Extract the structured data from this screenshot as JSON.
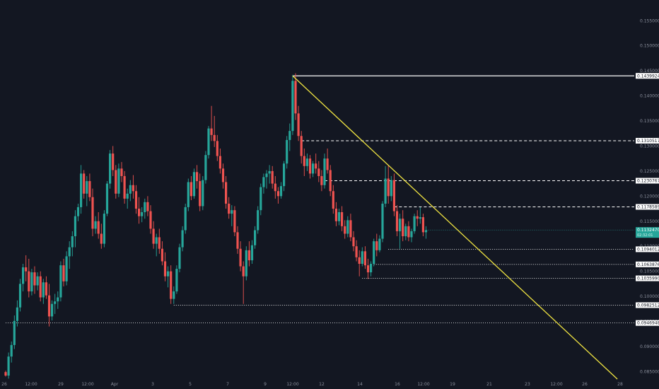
{
  "chart_data": {
    "type": "candlestick",
    "title": "",
    "background": "#131722",
    "colors": {
      "up": "#26a69a",
      "down": "#ef5350",
      "trendline": "#f0e442",
      "level": "#ffffff",
      "price_tag": "#26a69a"
    },
    "grid": false,
    "ylim": [
      0.0835,
      0.158
    ],
    "y_ticks": [
      "0.15500000",
      "0.15000000",
      "0.14500000",
      "0.14000000",
      "0.13500000",
      "0.13000000",
      "0.12500000",
      "0.12000000",
      "0.11500000",
      "0.11000000",
      "0.10500000",
      "0.10000000",
      "0.09500000",
      "0.09000000",
      "0.08500000"
    ],
    "x_ticks": [
      "26",
      "12:00",
      "29",
      "12:00",
      "Apr",
      "3",
      "5",
      "7",
      "9",
      "12:00",
      "12",
      "14",
      "16",
      "12:00",
      "19",
      "21",
      "23",
      "12:00",
      "26",
      "28"
    ],
    "current_price": {
      "value": 0.11324707,
      "label": "0.11324707",
      "timer": "02:32:01"
    },
    "levels": [
      {
        "value": 0.14399241,
        "label": "0.14399241",
        "style": "solid",
        "start_index": 99
      },
      {
        "value": 0.13105175,
        "label": "0.13105175",
        "style": "dashed",
        "start_index": 102
      },
      {
        "value": 0.12307676,
        "label": "0.12307676",
        "style": "dashed",
        "start_index": 110
      },
      {
        "value": 0.11785891,
        "label": "0.11785891",
        "style": "dashed",
        "start_index": 134
      },
      {
        "value": 0.10940125,
        "label": "0.10940125",
        "style": "dotted",
        "start_index": 132
      },
      {
        "value": 0.10638769,
        "label": "0.10638769",
        "style": "dotted",
        "start_index": 127
      },
      {
        "value": 0.103599,
        "label": "0.10359900",
        "style": "dotted",
        "start_index": 123
      },
      {
        "value": 0.09825128,
        "label": "0.09825128",
        "style": "dotted",
        "start_index": 58
      },
      {
        "value": 0.09469485,
        "label": "0.09469485",
        "style": "dotted",
        "start_index": 0
      }
    ],
    "trendline": {
      "start_index": 99,
      "start_value": 0.14399241,
      "end_index": 211,
      "end_value": 0.0835
    },
    "candles": [
      [
        0.0849,
        0.0852,
        0.084,
        0.0842
      ],
      [
        0.0842,
        0.0888,
        0.0836,
        0.088
      ],
      [
        0.088,
        0.091,
        0.0868,
        0.0903
      ],
      [
        0.0903,
        0.0962,
        0.0895,
        0.0951
      ],
      [
        0.0951,
        0.0992,
        0.094,
        0.0978
      ],
      [
        0.0978,
        0.1035,
        0.097,
        0.1025
      ],
      [
        0.1025,
        0.1065,
        0.101,
        0.1058
      ],
      [
        0.1058,
        0.1082,
        0.103,
        0.105
      ],
      [
        0.105,
        0.1075,
        0.0998,
        0.101
      ],
      [
        0.101,
        0.1055,
        0.1002,
        0.1048
      ],
      [
        0.1048,
        0.106,
        0.1005,
        0.1022
      ],
      [
        0.1022,
        0.1048,
        0.1012,
        0.104
      ],
      [
        0.104,
        0.105,
        0.099,
        0.0998
      ],
      [
        0.0998,
        0.1035,
        0.0985,
        0.1028
      ],
      [
        0.1028,
        0.104,
        0.0995,
        0.1002
      ],
      [
        0.1002,
        0.1025,
        0.094,
        0.096
      ],
      [
        0.096,
        0.0992,
        0.0952,
        0.0985
      ],
      [
        0.0985,
        0.1005,
        0.0965,
        0.099
      ],
      [
        0.099,
        0.101,
        0.0975,
        0.0998
      ],
      [
        0.0998,
        0.107,
        0.099,
        0.1062
      ],
      [
        0.1062,
        0.1075,
        0.102,
        0.103
      ],
      [
        0.103,
        0.109,
        0.1022,
        0.108
      ],
      [
        0.108,
        0.111,
        0.1055,
        0.1098
      ],
      [
        0.1098,
        0.113,
        0.108,
        0.112
      ],
      [
        0.112,
        0.1172,
        0.1098,
        0.116
      ],
      [
        0.116,
        0.1185,
        0.115,
        0.1178
      ],
      [
        0.1178,
        0.1262,
        0.1165,
        0.1245
      ],
      [
        0.1245,
        0.1252,
        0.1195,
        0.1205
      ],
      [
        0.1205,
        0.124,
        0.118,
        0.123
      ],
      [
        0.123,
        0.1245,
        0.119,
        0.1198
      ],
      [
        0.1198,
        0.1215,
        0.112,
        0.1135
      ],
      [
        0.1135,
        0.116,
        0.1125,
        0.115
      ],
      [
        0.115,
        0.1168,
        0.1115,
        0.1125
      ],
      [
        0.1125,
        0.1145,
        0.1095,
        0.1105
      ],
      [
        0.1105,
        0.1172,
        0.1098,
        0.1165
      ],
      [
        0.1165,
        0.123,
        0.116,
        0.1225
      ],
      [
        0.1225,
        0.1292,
        0.1215,
        0.1285
      ],
      [
        0.1285,
        0.13,
        0.124,
        0.1252
      ],
      [
        0.1252,
        0.1262,
        0.1195,
        0.1205
      ],
      [
        0.1205,
        0.1265,
        0.1198,
        0.1255
      ],
      [
        0.1255,
        0.1268,
        0.1228,
        0.124
      ],
      [
        0.124,
        0.125,
        0.1185,
        0.1195
      ],
      [
        0.1195,
        0.1215,
        0.1175,
        0.1205
      ],
      [
        0.1205,
        0.1232,
        0.119,
        0.1222
      ],
      [
        0.1222,
        0.1242,
        0.1195,
        0.121
      ],
      [
        0.121,
        0.1222,
        0.1165,
        0.1175
      ],
      [
        0.1175,
        0.1198,
        0.1145,
        0.116
      ],
      [
        0.116,
        0.1178,
        0.1148,
        0.1168
      ],
      [
        0.1168,
        0.1195,
        0.1155,
        0.1188
      ],
      [
        0.1188,
        0.12,
        0.116,
        0.117
      ],
      [
        0.117,
        0.1182,
        0.1125,
        0.1135
      ],
      [
        0.1135,
        0.115,
        0.1095,
        0.1105
      ],
      [
        0.1105,
        0.1125,
        0.108,
        0.1118
      ],
      [
        0.1118,
        0.1135,
        0.1085,
        0.1095
      ],
      [
        0.1095,
        0.111,
        0.1062,
        0.107
      ],
      [
        0.107,
        0.1088,
        0.103,
        0.104
      ],
      [
        0.104,
        0.106,
        0.1018,
        0.105
      ],
      [
        0.105,
        0.1062,
        0.0985,
        0.0995
      ],
      [
        0.0995,
        0.102,
        0.0985,
        0.101
      ],
      [
        0.101,
        0.1062,
        0.1005,
        0.1055
      ],
      [
        0.1055,
        0.1105,
        0.1048,
        0.1098
      ],
      [
        0.1098,
        0.114,
        0.109,
        0.1132
      ],
      [
        0.1132,
        0.1185,
        0.1125,
        0.1178
      ],
      [
        0.1178,
        0.1235,
        0.117,
        0.1228
      ],
      [
        0.1228,
        0.124,
        0.1192,
        0.12
      ],
      [
        0.12,
        0.1255,
        0.1195,
        0.1248
      ],
      [
        0.1248,
        0.1262,
        0.1215,
        0.123
      ],
      [
        0.123,
        0.1245,
        0.117,
        0.118
      ],
      [
        0.118,
        0.124,
        0.1172,
        0.1232
      ],
      [
        0.1232,
        0.129,
        0.1225,
        0.1282
      ],
      [
        0.1282,
        0.134,
        0.1275,
        0.1335
      ],
      [
        0.1335,
        0.138,
        0.131,
        0.1322
      ],
      [
        0.1322,
        0.136,
        0.1298,
        0.131
      ],
      [
        0.131,
        0.1322,
        0.127,
        0.128
      ],
      [
        0.128,
        0.1295,
        0.1245,
        0.1255
      ],
      [
        0.1255,
        0.1265,
        0.1215,
        0.1228
      ],
      [
        0.1228,
        0.124,
        0.1175,
        0.1185
      ],
      [
        0.1185,
        0.1198,
        0.1155,
        0.1165
      ],
      [
        0.1165,
        0.1182,
        0.114,
        0.1172
      ],
      [
        0.1172,
        0.118,
        0.112,
        0.1128
      ],
      [
        0.1128,
        0.114,
        0.1085,
        0.1095
      ],
      [
        0.1095,
        0.111,
        0.105,
        0.106
      ],
      [
        0.106,
        0.107,
        0.0985,
        0.104
      ],
      [
        0.104,
        0.11,
        0.1032,
        0.1092
      ],
      [
        0.1092,
        0.111,
        0.106,
        0.1072
      ],
      [
        0.1072,
        0.1112,
        0.1065,
        0.1102
      ],
      [
        0.1102,
        0.114,
        0.1095,
        0.1132
      ],
      [
        0.1132,
        0.118,
        0.1125,
        0.1172
      ],
      [
        0.1172,
        0.1225,
        0.1162,
        0.1218
      ],
      [
        0.1218,
        0.1245,
        0.1205,
        0.1238
      ],
      [
        0.1238,
        0.1252,
        0.1215,
        0.1245
      ],
      [
        0.1245,
        0.1262,
        0.1225,
        0.125
      ],
      [
        0.125,
        0.126,
        0.1215,
        0.1225
      ],
      [
        0.1225,
        0.124,
        0.1195,
        0.121
      ],
      [
        0.121,
        0.1218,
        0.1185,
        0.12
      ],
      [
        0.12,
        0.1228,
        0.1195,
        0.122
      ],
      [
        0.122,
        0.127,
        0.121,
        0.1265
      ],
      [
        0.1265,
        0.132,
        0.1255,
        0.1312
      ],
      [
        0.1312,
        0.1345,
        0.129,
        0.133
      ],
      [
        0.133,
        0.1442,
        0.1322,
        0.143
      ],
      [
        0.143,
        0.1445,
        0.1352,
        0.1365
      ],
      [
        0.1365,
        0.138,
        0.131,
        0.132
      ],
      [
        0.132,
        0.133,
        0.1265,
        0.128
      ],
      [
        0.128,
        0.1295,
        0.124,
        0.126
      ],
      [
        0.126,
        0.1285,
        0.125,
        0.1275
      ],
      [
        0.1275,
        0.1282,
        0.1235,
        0.1245
      ],
      [
        0.1245,
        0.127,
        0.1238,
        0.1265
      ],
      [
        0.1265,
        0.1285,
        0.1245,
        0.1255
      ],
      [
        0.1255,
        0.127,
        0.1228,
        0.124
      ],
      [
        0.124,
        0.1252,
        0.121,
        0.1222
      ],
      [
        0.1222,
        0.1285,
        0.1215,
        0.1275
      ],
      [
        0.1275,
        0.1295,
        0.1245,
        0.1252
      ],
      [
        0.1252,
        0.1262,
        0.12,
        0.121
      ],
      [
        0.121,
        0.1222,
        0.1165,
        0.1175
      ],
      [
        0.1175,
        0.1188,
        0.114,
        0.115
      ],
      [
        0.115,
        0.1175,
        0.1142,
        0.1168
      ],
      [
        0.1168,
        0.118,
        0.113,
        0.114
      ],
      [
        0.114,
        0.1152,
        0.1115,
        0.1125
      ],
      [
        0.1125,
        0.116,
        0.1118,
        0.1152
      ],
      [
        0.1152,
        0.1165,
        0.111,
        0.1118
      ],
      [
        0.1118,
        0.113,
        0.109,
        0.11
      ],
      [
        0.11,
        0.1112,
        0.107,
        0.1078
      ],
      [
        0.1078,
        0.1092,
        0.104,
        0.1065
      ],
      [
        0.1065,
        0.1098,
        0.106,
        0.109
      ],
      [
        0.109,
        0.11,
        0.1055,
        0.1062
      ],
      [
        0.1062,
        0.1075,
        0.1035,
        0.1048
      ],
      [
        0.1048,
        0.107,
        0.104,
        0.1065
      ],
      [
        0.1065,
        0.1115,
        0.106,
        0.111
      ],
      [
        0.111,
        0.1125,
        0.108,
        0.1092
      ],
      [
        0.1092,
        0.1122,
        0.1088,
        0.1115
      ],
      [
        0.1115,
        0.119,
        0.1108,
        0.1185
      ],
      [
        0.1185,
        0.126,
        0.1178,
        0.1235
      ],
      [
        0.1235,
        0.1262,
        0.1185,
        0.12
      ],
      [
        0.12,
        0.124,
        0.119,
        0.1232
      ],
      [
        0.1232,
        0.1245,
        0.116,
        0.117
      ],
      [
        0.117,
        0.1182,
        0.112,
        0.113
      ],
      [
        0.113,
        0.1165,
        0.1095,
        0.1155
      ],
      [
        0.1155,
        0.1172,
        0.111,
        0.112
      ],
      [
        0.112,
        0.1145,
        0.1112,
        0.114
      ],
      [
        0.114,
        0.115,
        0.111,
        0.1118
      ],
      [
        0.1118,
        0.1135,
        0.1108,
        0.113
      ],
      [
        0.113,
        0.1165,
        0.1125,
        0.116
      ],
      [
        0.116,
        0.1172,
        0.114,
        0.1155
      ],
      [
        0.1155,
        0.1178,
        0.1145,
        0.1158
      ],
      [
        0.1158,
        0.1165,
        0.112,
        0.1128
      ],
      [
        0.1128,
        0.114,
        0.1115,
        0.1132
      ]
    ]
  }
}
